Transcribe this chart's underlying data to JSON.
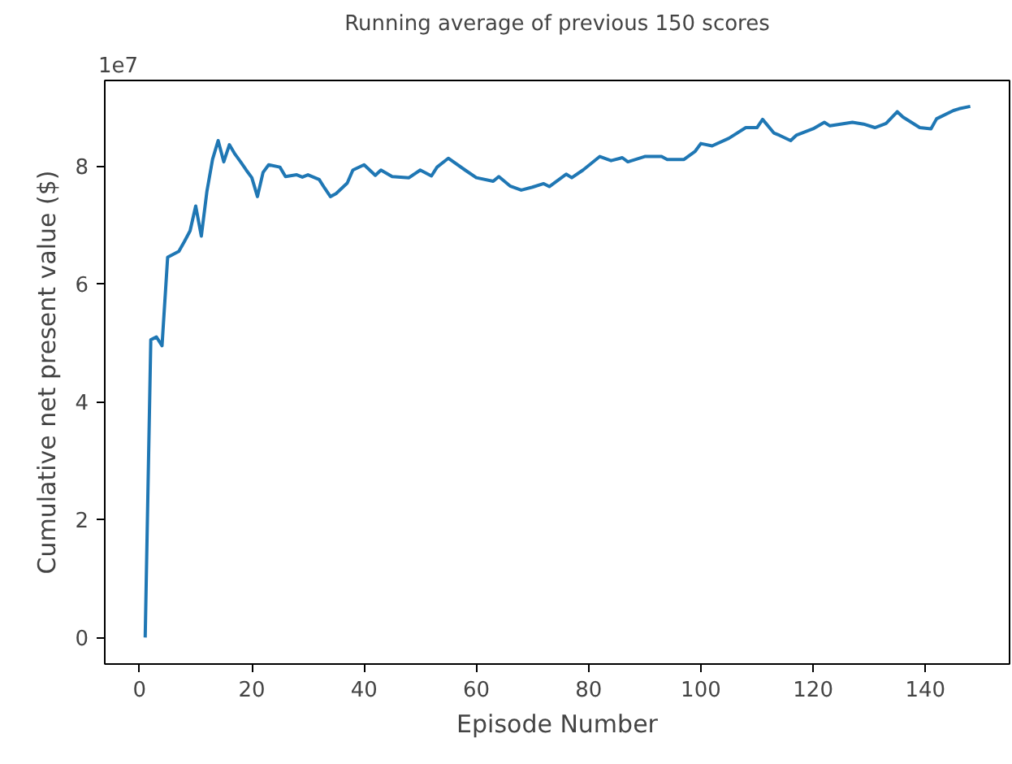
{
  "chart_data": {
    "type": "line",
    "title": "Running average of previous 150 scores",
    "xlabel": "Episode Number",
    "ylabel": "Cumulative net present value ($)",
    "annotations": [
      "1e7"
    ],
    "x": [
      1,
      2,
      3,
      4,
      5,
      7,
      8,
      9,
      10,
      11,
      12,
      13,
      14,
      15,
      16,
      17,
      18,
      19,
      20,
      21,
      22,
      23,
      25,
      26,
      28,
      29,
      30,
      32,
      33,
      34,
      35,
      37,
      38,
      40,
      42,
      43,
      45,
      48,
      50,
      52,
      53,
      55,
      58,
      60,
      63,
      64,
      66,
      68,
      70,
      72,
      73,
      76,
      77,
      79,
      82,
      84,
      86,
      87,
      90,
      93,
      94,
      97,
      99,
      100,
      102,
      105,
      108,
      110,
      111,
      113,
      114,
      116,
      117,
      120,
      122,
      123,
      127,
      129,
      131,
      133,
      135,
      136,
      139,
      141,
      142,
      145,
      146,
      148
    ],
    "series": [
      {
        "color": "#1f77b4",
        "values": [
          0,
          5.05,
          5.1,
          4.95,
          6.45,
          6.55,
          6.72,
          6.9,
          7.32,
          6.81,
          7.57,
          8.11,
          8.43,
          8.07,
          8.36,
          8.2,
          8.07,
          7.93,
          7.8,
          7.48,
          7.89,
          8.02,
          7.98,
          7.82,
          7.85,
          7.81,
          7.85,
          7.77,
          7.62,
          7.48,
          7.53,
          7.71,
          7.93,
          8.02,
          7.84,
          7.93,
          7.82,
          7.8,
          7.93,
          7.83,
          7.98,
          8.13,
          7.93,
          7.8,
          7.74,
          7.82,
          7.66,
          7.59,
          7.64,
          7.7,
          7.65,
          7.86,
          7.8,
          7.93,
          8.16,
          8.09,
          8.14,
          8.07,
          8.16,
          8.16,
          8.11,
          8.11,
          8.25,
          8.38,
          8.34,
          8.47,
          8.65,
          8.65,
          8.79,
          8.56,
          8.52,
          8.43,
          8.52,
          8.63,
          8.74,
          8.68,
          8.74,
          8.71,
          8.65,
          8.72,
          8.92,
          8.83,
          8.65,
          8.63,
          8.8,
          8.94,
          8.97,
          9.01
        ]
      }
    ],
    "xlim": [
      -6.2,
      155
    ],
    "ylim": [
      -0.45,
      9.45
    ],
    "xticks": [
      0,
      20,
      40,
      60,
      80,
      100,
      120,
      140
    ],
    "yticks": [
      0,
      2,
      4,
      6,
      8
    ],
    "grid": false,
    "marker": "none",
    "line_style": "solid"
  }
}
